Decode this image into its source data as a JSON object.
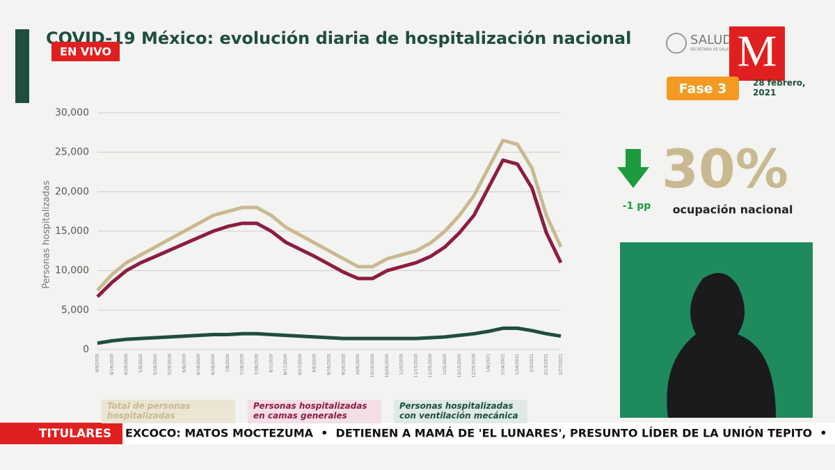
{
  "chart_data": {
    "type": "line",
    "title": "COVID-19 México: evolución diaria de hospitalización nacional",
    "y_label": "Personas hospitalizadas",
    "categories": [
      "4/9/2020",
      "4/19/2020",
      "4/29/2020",
      "5/9/2020",
      "5/19/2020",
      "5/29/2020",
      "6/8/2020",
      "6/18/2020",
      "6/28/2020",
      "7/8/2020",
      "7/18/2020",
      "7/28/2020",
      "8/7/2020",
      "8/17/2020",
      "8/27/2020",
      "9/6/2020",
      "9/16/2020",
      "9/26/2020",
      "10/6/2020",
      "10/16/2020",
      "10/26/2020",
      "11/5/2020",
      "11/15/2020",
      "11/25/2020",
      "12/5/2020",
      "12/15/2020",
      "12/25/2020",
      "1/4/2021",
      "1/14/2021",
      "1/24/2021",
      "2/3/2021",
      "2/13/2021",
      "2/27/2021"
    ],
    "series": [
      {
        "name": "Total de personas hospitalizadas",
        "color": "#c9b990",
        "values": [
          7500,
          9500,
          11000,
          12000,
          13000,
          14000,
          15000,
          16000,
          17000,
          17500,
          18000,
          18000,
          17000,
          15500,
          14500,
          13500,
          12500,
          11500,
          10500,
          10500,
          11500,
          12000,
          12500,
          13500,
          15000,
          17000,
          19500,
          23000,
          26500,
          26000,
          23000,
          17000,
          13000
        ]
      },
      {
        "name": "Personas hospitalizadas en camas generales",
        "color": "#8c1d40",
        "values": [
          6700,
          8500,
          10000,
          11000,
          11800,
          12600,
          13400,
          14200,
          15000,
          15600,
          16000,
          16000,
          15000,
          13600,
          12700,
          11800,
          10800,
          9800,
          9000,
          9000,
          10000,
          10500,
          11000,
          11800,
          13000,
          14800,
          17000,
          20500,
          24000,
          23500,
          20500,
          14800,
          11000
        ]
      },
      {
        "name": "Personas hospitalizadas con ventilación mecánica",
        "color": "#1f4e3d",
        "values": [
          800,
          1100,
          1300,
          1400,
          1500,
          1600,
          1700,
          1800,
          1900,
          1900,
          2000,
          2000,
          1900,
          1800,
          1700,
          1600,
          1500,
          1400,
          1400,
          1400,
          1400,
          1400,
          1400,
          1500,
          1600,
          1800,
          2000,
          2300,
          2700,
          2700,
          2400,
          2000,
          1700
        ]
      }
    ],
    "legend_fills": [
      "#ebe5d4",
      "#f3dfe4",
      "#dfeae4"
    ],
    "ylim": [
      0,
      30000
    ],
    "yticks": [
      0,
      {
        "value": 5000,
        "label": "5,000"
      },
      {
        "value": 10000,
        "label": "10,000"
      },
      {
        "value": 15000,
        "label": "15,000"
      },
      {
        "value": 20000,
        "label": "20,000"
      },
      {
        "value": 25000,
        "label": "25,000"
      },
      {
        "value": 30000,
        "label": "30,000"
      }
    ],
    "grid": true
  },
  "overlay": {
    "live_badge": "EN VIVO",
    "logo_text": "SALUD",
    "logo_sub": "SECRETARÍA DE SALUD",
    "channel_logo": "M",
    "phase": "Fase 3",
    "date": "28 febrero, 2021",
    "occupancy": "30%",
    "change": "-1 pp",
    "occupancy_label": "ocupación nacional",
    "ticker": {
      "label": "TITULARES",
      "text": "EXCOCO: MATOS MOCTEZUMA  •  DETIENEN A MAMÁ DE 'EL LUNARES', PRESUNTO LÍDER DE LA UNIÓN TEPITO  •  POR COVID"
    }
  }
}
